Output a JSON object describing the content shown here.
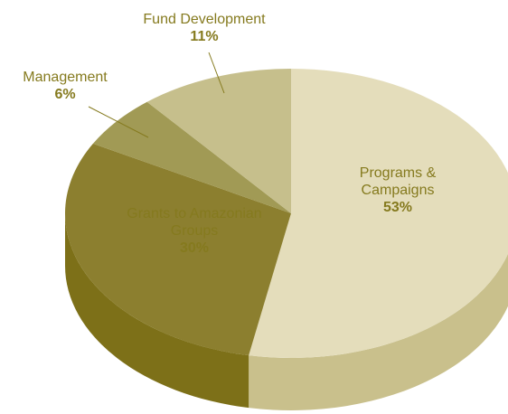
{
  "chart_data": {
    "type": "pie3d",
    "categories": [
      "Programs & Campaigns",
      "Grants to Amazonian Groups",
      "Management",
      "Fund Development"
    ],
    "values": [
      53,
      30,
      6,
      11
    ],
    "value_labels": [
      "53%",
      "30%",
      "6%",
      "11%"
    ],
    "colors": [
      "#e4ddbb",
      "#8c7f2f",
      "#a19a55",
      "#c6bf8c"
    ],
    "side_colors": [
      "#c9c08c",
      "#7d7018",
      "#857c30",
      "#a89f62"
    ]
  }
}
